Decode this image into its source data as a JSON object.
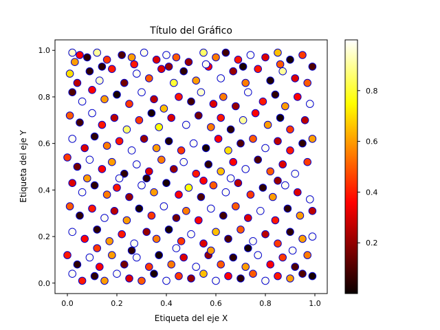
{
  "chart_data": {
    "type": "scatter",
    "title": "Título del Gráfico",
    "xlabel": "Etiqueta del eje X",
    "ylabel": "Etiqueta del eje Y",
    "xlim": [
      -0.05,
      1.05
    ],
    "ylim": [
      -0.045,
      1.045
    ],
    "xticks": [
      "0.0",
      "0.2",
      "0.4",
      "0.6",
      "0.8",
      "1.0"
    ],
    "yticks": [
      "0.0",
      "0.2",
      "0.4",
      "0.6",
      "0.8",
      "1.0"
    ],
    "colormap": "hot",
    "edge_color": "#0000cc",
    "colorbar": {
      "range": [
        0,
        1
      ],
      "ticks": [
        "0.2",
        "0.4",
        "0.6",
        "0.8"
      ]
    },
    "points": [
      {
        "x": 0.02,
        "y": 0.99,
        "c": 0.95
      },
      {
        "x": 0.05,
        "y": 0.98,
        "c": 0.35
      },
      {
        "x": 0.08,
        "y": 0.97,
        "c": 0.05
      },
      {
        "x": 0.12,
        "y": 0.99,
        "c": 0.9
      },
      {
        "x": 0.16,
        "y": 0.96,
        "c": 0.45
      },
      {
        "x": 0.22,
        "y": 0.98,
        "c": 0.1
      },
      {
        "x": 0.26,
        "y": 0.97,
        "c": 0.6
      },
      {
        "x": 0.31,
        "y": 0.99,
        "c": 0.98
      },
      {
        "x": 0.36,
        "y": 0.96,
        "c": 0.3
      },
      {
        "x": 0.4,
        "y": 0.98,
        "c": 0.99
      },
      {
        "x": 0.44,
        "y": 0.97,
        "c": 0.5
      },
      {
        "x": 0.49,
        "y": 0.95,
        "c": 0.2
      },
      {
        "x": 0.55,
        "y": 0.99,
        "c": 0.85
      },
      {
        "x": 0.6,
        "y": 0.97,
        "c": 0.55
      },
      {
        "x": 0.64,
        "y": 0.99,
        "c": 0.08
      },
      {
        "x": 0.69,
        "y": 0.96,
        "c": 0.4
      },
      {
        "x": 0.74,
        "y": 0.98,
        "c": 0.99
      },
      {
        "x": 0.8,
        "y": 0.97,
        "c": 0.3
      },
      {
        "x": 0.85,
        "y": 0.99,
        "c": 0.65
      },
      {
        "x": 0.9,
        "y": 0.96,
        "c": 0.02
      },
      {
        "x": 0.95,
        "y": 0.98,
        "c": 0.45
      },
      {
        "x": 0.99,
        "y": 0.93,
        "c": 0.1
      },
      {
        "x": 0.01,
        "y": 0.9,
        "c": 0.7
      },
      {
        "x": 0.04,
        "y": 0.86,
        "c": 0.25
      },
      {
        "x": 0.09,
        "y": 0.91,
        "c": 0.05
      },
      {
        "x": 0.13,
        "y": 0.87,
        "c": 0.95
      },
      {
        "x": 0.18,
        "y": 0.92,
        "c": 0.4
      },
      {
        "x": 0.23,
        "y": 0.86,
        "c": 0.15
      },
      {
        "x": 0.28,
        "y": 0.9,
        "c": 0.99
      },
      {
        "x": 0.33,
        "y": 0.88,
        "c": 0.5
      },
      {
        "x": 0.38,
        "y": 0.92,
        "c": 0.3
      },
      {
        "x": 0.43,
        "y": 0.86,
        "c": 0.8
      },
      {
        "x": 0.47,
        "y": 0.91,
        "c": 0.05
      },
      {
        "x": 0.52,
        "y": 0.87,
        "c": 0.6
      },
      {
        "x": 0.57,
        "y": 0.93,
        "c": 0.35
      },
      {
        "x": 0.62,
        "y": 0.88,
        "c": 0.99
      },
      {
        "x": 0.67,
        "y": 0.91,
        "c": 0.2
      },
      {
        "x": 0.72,
        "y": 0.86,
        "c": 0.55
      },
      {
        "x": 0.77,
        "y": 0.92,
        "c": 0.4
      },
      {
        "x": 0.82,
        "y": 0.87,
        "c": 0.03
      },
      {
        "x": 0.87,
        "y": 0.91,
        "c": 0.9
      },
      {
        "x": 0.92,
        "y": 0.88,
        "c": 0.3
      },
      {
        "x": 0.97,
        "y": 0.86,
        "c": 0.5
      },
      {
        "x": 0.02,
        "y": 0.82,
        "c": 0.1
      },
      {
        "x": 0.06,
        "y": 0.78,
        "c": 0.99
      },
      {
        "x": 0.1,
        "y": 0.83,
        "c": 0.35
      },
      {
        "x": 0.15,
        "y": 0.79,
        "c": 0.6
      },
      {
        "x": 0.2,
        "y": 0.81,
        "c": 0.02
      },
      {
        "x": 0.25,
        "y": 0.77,
        "c": 0.45
      },
      {
        "x": 0.3,
        "y": 0.82,
        "c": 0.99
      },
      {
        "x": 0.35,
        "y": 0.79,
        "c": 0.25
      },
      {
        "x": 0.39,
        "y": 0.75,
        "c": 0.65
      },
      {
        "x": 0.45,
        "y": 0.8,
        "c": 0.4
      },
      {
        "x": 0.5,
        "y": 0.78,
        "c": 0.08
      },
      {
        "x": 0.54,
        "y": 0.82,
        "c": 0.95
      },
      {
        "x": 0.59,
        "y": 0.77,
        "c": 0.3
      },
      {
        "x": 0.63,
        "y": 0.8,
        "c": 0.55
      },
      {
        "x": 0.68,
        "y": 0.76,
        "c": 0.2
      },
      {
        "x": 0.73,
        "y": 0.82,
        "c": 0.99
      },
      {
        "x": 0.79,
        "y": 0.78,
        "c": 0.4
      },
      {
        "x": 0.84,
        "y": 0.81,
        "c": 0.05
      },
      {
        "x": 0.88,
        "y": 0.76,
        "c": 0.6
      },
      {
        "x": 0.93,
        "y": 0.8,
        "c": 0.35
      },
      {
        "x": 0.98,
        "y": 0.77,
        "c": 0.99
      },
      {
        "x": 0.01,
        "y": 0.72,
        "c": 0.5
      },
      {
        "x": 0.05,
        "y": 0.69,
        "c": 0.08
      },
      {
        "x": 0.1,
        "y": 0.73,
        "c": 0.99
      },
      {
        "x": 0.14,
        "y": 0.68,
        "c": 0.4
      },
      {
        "x": 0.19,
        "y": 0.71,
        "c": 0.25
      },
      {
        "x": 0.24,
        "y": 0.66,
        "c": 0.85
      },
      {
        "x": 0.29,
        "y": 0.7,
        "c": 0.45
      },
      {
        "x": 0.34,
        "y": 0.73,
        "c": 0.02
      },
      {
        "x": 0.37,
        "y": 0.67,
        "c": 0.75
      },
      {
        "x": 0.42,
        "y": 0.71,
        "c": 0.3
      },
      {
        "x": 0.48,
        "y": 0.68,
        "c": 0.99
      },
      {
        "x": 0.53,
        "y": 0.72,
        "c": 0.15
      },
      {
        "x": 0.58,
        "y": 0.67,
        "c": 0.55
      },
      {
        "x": 0.62,
        "y": 0.71,
        "c": 0.4
      },
      {
        "x": 0.66,
        "y": 0.66,
        "c": 0.05
      },
      {
        "x": 0.71,
        "y": 0.7,
        "c": 0.9
      },
      {
        "x": 0.76,
        "y": 0.73,
        "c": 0.35
      },
      {
        "x": 0.81,
        "y": 0.68,
        "c": 0.6
      },
      {
        "x": 0.86,
        "y": 0.71,
        "c": 0.02
      },
      {
        "x": 0.9,
        "y": 0.66,
        "c": 0.45
      },
      {
        "x": 0.96,
        "y": 0.7,
        "c": 0.25
      },
      {
        "x": 0.02,
        "y": 0.62,
        "c": 0.99
      },
      {
        "x": 0.07,
        "y": 0.58,
        "c": 0.3
      },
      {
        "x": 0.11,
        "y": 0.63,
        "c": 0.05
      },
      {
        "x": 0.16,
        "y": 0.59,
        "c": 0.55
      },
      {
        "x": 0.21,
        "y": 0.61,
        "c": 0.4
      },
      {
        "x": 0.26,
        "y": 0.57,
        "c": 0.99
      },
      {
        "x": 0.31,
        "y": 0.62,
        "c": 0.2
      },
      {
        "x": 0.36,
        "y": 0.58,
        "c": 0.6
      },
      {
        "x": 0.41,
        "y": 0.61,
        "c": 0.03
      },
      {
        "x": 0.46,
        "y": 0.57,
        "c": 0.45
      },
      {
        "x": 0.51,
        "y": 0.6,
        "c": 0.99
      },
      {
        "x": 0.56,
        "y": 0.58,
        "c": 0.02
      },
      {
        "x": 0.61,
        "y": 0.62,
        "c": 0.35
      },
      {
        "x": 0.65,
        "y": 0.57,
        "c": 0.7
      },
      {
        "x": 0.7,
        "y": 0.6,
        "c": 0.1
      },
      {
        "x": 0.75,
        "y": 0.62,
        "c": 0.5
      },
      {
        "x": 0.8,
        "y": 0.58,
        "c": 0.99
      },
      {
        "x": 0.85,
        "y": 0.61,
        "c": 0.25
      },
      {
        "x": 0.9,
        "y": 0.57,
        "c": 0.4
      },
      {
        "x": 0.95,
        "y": 0.6,
        "c": 0.05
      },
      {
        "x": 0.99,
        "y": 0.62,
        "c": 0.6
      },
      {
        "x": 0.0,
        "y": 0.54,
        "c": 0.45
      },
      {
        "x": 0.04,
        "y": 0.5,
        "c": 0.15
      },
      {
        "x": 0.09,
        "y": 0.53,
        "c": 0.99
      },
      {
        "x": 0.14,
        "y": 0.49,
        "c": 0.35
      },
      {
        "x": 0.18,
        "y": 0.52,
        "c": 0.6
      },
      {
        "x": 0.23,
        "y": 0.47,
        "c": 0.05
      },
      {
        "x": 0.28,
        "y": 0.51,
        "c": 0.99
      },
      {
        "x": 0.33,
        "y": 0.48,
        "c": 0.3
      },
      {
        "x": 0.38,
        "y": 0.53,
        "c": 0.55
      },
      {
        "x": 0.43,
        "y": 0.49,
        "c": 0.2
      },
      {
        "x": 0.47,
        "y": 0.52,
        "c": 0.99
      },
      {
        "x": 0.52,
        "y": 0.47,
        "c": 0.4
      },
      {
        "x": 0.57,
        "y": 0.51,
        "c": 0.05
      },
      {
        "x": 0.62,
        "y": 0.48,
        "c": 0.65
      },
      {
        "x": 0.67,
        "y": 0.52,
        "c": 0.35
      },
      {
        "x": 0.72,
        "y": 0.49,
        "c": 0.99
      },
      {
        "x": 0.77,
        "y": 0.53,
        "c": 0.1
      },
      {
        "x": 0.82,
        "y": 0.48,
        "c": 0.5
      },
      {
        "x": 0.87,
        "y": 0.51,
        "c": 0.3
      },
      {
        "x": 0.92,
        "y": 0.47,
        "c": 0.99
      },
      {
        "x": 0.97,
        "y": 0.52,
        "c": 0.45
      },
      {
        "x": 0.02,
        "y": 0.43,
        "c": 0.3
      },
      {
        "x": 0.06,
        "y": 0.39,
        "c": 0.99
      },
      {
        "x": 0.11,
        "y": 0.42,
        "c": 0.05
      },
      {
        "x": 0.16,
        "y": 0.38,
        "c": 0.55
      },
      {
        "x": 0.2,
        "y": 0.41,
        "c": 0.4
      },
      {
        "x": 0.25,
        "y": 0.37,
        "c": 0.2
      },
      {
        "x": 0.3,
        "y": 0.42,
        "c": 0.99
      },
      {
        "x": 0.35,
        "y": 0.39,
        "c": 0.6
      },
      {
        "x": 0.4,
        "y": 0.43,
        "c": 0.02
      },
      {
        "x": 0.45,
        "y": 0.38,
        "c": 0.35
      },
      {
        "x": 0.49,
        "y": 0.41,
        "c": 0.75
      },
      {
        "x": 0.54,
        "y": 0.37,
        "c": 0.1
      },
      {
        "x": 0.59,
        "y": 0.42,
        "c": 0.5
      },
      {
        "x": 0.64,
        "y": 0.39,
        "c": 0.99
      },
      {
        "x": 0.69,
        "y": 0.43,
        "c": 0.25
      },
      {
        "x": 0.74,
        "y": 0.38,
        "c": 0.45
      },
      {
        "x": 0.79,
        "y": 0.41,
        "c": 0.05
      },
      {
        "x": 0.83,
        "y": 0.37,
        "c": 0.6
      },
      {
        "x": 0.88,
        "y": 0.42,
        "c": 0.99
      },
      {
        "x": 0.93,
        "y": 0.39,
        "c": 0.3
      },
      {
        "x": 0.98,
        "y": 0.36,
        "c": 0.99
      },
      {
        "x": 0.01,
        "y": 0.33,
        "c": 0.5
      },
      {
        "x": 0.05,
        "y": 0.29,
        "c": 0.05
      },
      {
        "x": 0.1,
        "y": 0.32,
        "c": 0.4
      },
      {
        "x": 0.15,
        "y": 0.28,
        "c": 0.99
      },
      {
        "x": 0.19,
        "y": 0.31,
        "c": 0.25
      },
      {
        "x": 0.24,
        "y": 0.27,
        "c": 0.6
      },
      {
        "x": 0.29,
        "y": 0.32,
        "c": 0.02
      },
      {
        "x": 0.34,
        "y": 0.29,
        "c": 0.45
      },
      {
        "x": 0.39,
        "y": 0.33,
        "c": 0.99
      },
      {
        "x": 0.44,
        "y": 0.28,
        "c": 0.15
      },
      {
        "x": 0.48,
        "y": 0.31,
        "c": 0.55
      },
      {
        "x": 0.53,
        "y": 0.27,
        "c": 0.35
      },
      {
        "x": 0.58,
        "y": 0.32,
        "c": 0.99
      },
      {
        "x": 0.63,
        "y": 0.29,
        "c": 0.08
      },
      {
        "x": 0.68,
        "y": 0.33,
        "c": 0.5
      },
      {
        "x": 0.73,
        "y": 0.28,
        "c": 0.3
      },
      {
        "x": 0.78,
        "y": 0.31,
        "c": 0.99
      },
      {
        "x": 0.84,
        "y": 0.27,
        "c": 0.4
      },
      {
        "x": 0.89,
        "y": 0.32,
        "c": 0.05
      },
      {
        "x": 0.94,
        "y": 0.29,
        "c": 0.6
      },
      {
        "x": 0.99,
        "y": 0.31,
        "c": 0.25
      },
      {
        "x": 0.02,
        "y": 0.22,
        "c": 0.99
      },
      {
        "x": 0.07,
        "y": 0.19,
        "c": 0.35
      },
      {
        "x": 0.12,
        "y": 0.23,
        "c": 0.05
      },
      {
        "x": 0.17,
        "y": 0.18,
        "c": 0.6
      },
      {
        "x": 0.22,
        "y": 0.21,
        "c": 0.4
      },
      {
        "x": 0.27,
        "y": 0.17,
        "c": 0.99
      },
      {
        "x": 0.32,
        "y": 0.22,
        "c": 0.2
      },
      {
        "x": 0.36,
        "y": 0.19,
        "c": 0.55
      },
      {
        "x": 0.41,
        "y": 0.23,
        "c": 0.02
      },
      {
        "x": 0.46,
        "y": 0.18,
        "c": 0.45
      },
      {
        "x": 0.5,
        "y": 0.21,
        "c": 0.99
      },
      {
        "x": 0.55,
        "y": 0.17,
        "c": 0.3
      },
      {
        "x": 0.6,
        "y": 0.22,
        "c": 0.65
      },
      {
        "x": 0.65,
        "y": 0.19,
        "c": 0.1
      },
      {
        "x": 0.7,
        "y": 0.23,
        "c": 0.5
      },
      {
        "x": 0.75,
        "y": 0.18,
        "c": 0.99
      },
      {
        "x": 0.8,
        "y": 0.21,
        "c": 0.25
      },
      {
        "x": 0.85,
        "y": 0.17,
        "c": 0.45
      },
      {
        "x": 0.9,
        "y": 0.22,
        "c": 0.05
      },
      {
        "x": 0.95,
        "y": 0.19,
        "c": 0.6
      },
      {
        "x": 0.99,
        "y": 0.2,
        "c": 0.99
      },
      {
        "x": 0.0,
        "y": 0.12,
        "c": 0.4
      },
      {
        "x": 0.04,
        "y": 0.08,
        "c": 0.05
      },
      {
        "x": 0.09,
        "y": 0.11,
        "c": 0.99
      },
      {
        "x": 0.13,
        "y": 0.07,
        "c": 0.35
      },
      {
        "x": 0.18,
        "y": 0.12,
        "c": 0.6
      },
      {
        "x": 0.23,
        "y": 0.08,
        "c": 0.15
      },
      {
        "x": 0.28,
        "y": 0.11,
        "c": 0.99
      },
      {
        "x": 0.33,
        "y": 0.07,
        "c": 0.45
      },
      {
        "x": 0.37,
        "y": 0.12,
        "c": 0.02
      },
      {
        "x": 0.42,
        "y": 0.08,
        "c": 0.55
      },
      {
        "x": 0.47,
        "y": 0.11,
        "c": 0.3
      },
      {
        "x": 0.52,
        "y": 0.07,
        "c": 0.99
      },
      {
        "x": 0.57,
        "y": 0.12,
        "c": 0.2
      },
      {
        "x": 0.62,
        "y": 0.08,
        "c": 0.5
      },
      {
        "x": 0.67,
        "y": 0.11,
        "c": 0.05
      },
      {
        "x": 0.72,
        "y": 0.07,
        "c": 0.6
      },
      {
        "x": 0.77,
        "y": 0.12,
        "c": 0.99
      },
      {
        "x": 0.82,
        "y": 0.08,
        "c": 0.35
      },
      {
        "x": 0.87,
        "y": 0.11,
        "c": 0.45
      },
      {
        "x": 0.92,
        "y": 0.07,
        "c": 0.1
      },
      {
        "x": 0.97,
        "y": 0.12,
        "c": 0.55
      },
      {
        "x": 0.02,
        "y": 0.04,
        "c": 0.99
      },
      {
        "x": 0.06,
        "y": 0.01,
        "c": 0.4
      },
      {
        "x": 0.11,
        "y": 0.03,
        "c": 0.05
      },
      {
        "x": 0.15,
        "y": 0.01,
        "c": 0.6
      },
      {
        "x": 0.2,
        "y": 0.04,
        "c": 0.99
      },
      {
        "x": 0.25,
        "y": 0.02,
        "c": 0.3
      },
      {
        "x": 0.3,
        "y": 0.01,
        "c": 0.5
      },
      {
        "x": 0.35,
        "y": 0.04,
        "c": 0.02
      },
      {
        "x": 0.4,
        "y": 0.01,
        "c": 0.99
      },
      {
        "x": 0.45,
        "y": 0.03,
        "c": 0.45
      },
      {
        "x": 0.5,
        "y": 0.02,
        "c": 0.2
      },
      {
        "x": 0.55,
        "y": 0.04,
        "c": 0.65
      },
      {
        "x": 0.6,
        "y": 0.01,
        "c": 0.99
      },
      {
        "x": 0.65,
        "y": 0.03,
        "c": 0.35
      },
      {
        "x": 0.7,
        "y": 0.02,
        "c": 0.05
      },
      {
        "x": 0.75,
        "y": 0.04,
        "c": 0.5
      },
      {
        "x": 0.8,
        "y": 0.01,
        "c": 0.99
      },
      {
        "x": 0.85,
        "y": 0.03,
        "c": 0.4
      },
      {
        "x": 0.9,
        "y": 0.02,
        "c": 0.6
      },
      {
        "x": 0.95,
        "y": 0.04,
        "c": 0.1
      },
      {
        "x": 0.99,
        "y": 0.03,
        "c": 0.02
      },
      {
        "x": 0.03,
        "y": 0.95,
        "c": 0.6
      },
      {
        "x": 0.14,
        "y": 0.93,
        "c": 0.05
      },
      {
        "x": 0.27,
        "y": 0.94,
        "c": 0.4
      },
      {
        "x": 0.41,
        "y": 0.93,
        "c": 0.2
      },
      {
        "x": 0.56,
        "y": 0.94,
        "c": 0.99
      },
      {
        "x": 0.71,
        "y": 0.93,
        "c": 0.02
      },
      {
        "x": 0.86,
        "y": 0.94,
        "c": 0.5
      },
      {
        "x": 0.08,
        "y": 0.45,
        "c": 0.6
      },
      {
        "x": 0.21,
        "y": 0.45,
        "c": 0.99
      },
      {
        "x": 0.32,
        "y": 0.45,
        "c": 0.05
      },
      {
        "x": 0.55,
        "y": 0.44,
        "c": 0.35
      },
      {
        "x": 0.66,
        "y": 0.45,
        "c": 0.99
      },
      {
        "x": 0.85,
        "y": 0.44,
        "c": 0.2
      },
      {
        "x": 0.12,
        "y": 0.15,
        "c": 0.45
      },
      {
        "x": 0.26,
        "y": 0.14,
        "c": 0.05
      },
      {
        "x": 0.44,
        "y": 0.15,
        "c": 0.99
      },
      {
        "x": 0.58,
        "y": 0.14,
        "c": 0.6
      },
      {
        "x": 0.73,
        "y": 0.15,
        "c": 0.02
      },
      {
        "x": 0.91,
        "y": 0.14,
        "c": 0.99
      }
    ]
  }
}
